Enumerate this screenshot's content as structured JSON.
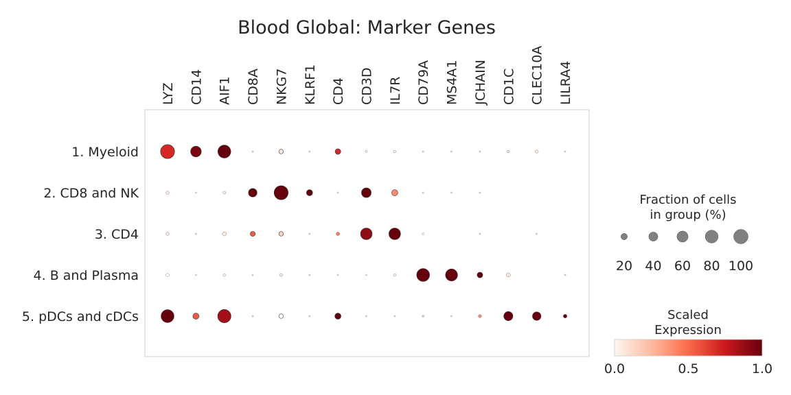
{
  "chart_data": {
    "type": "dotplot",
    "title": "Blood Global: Marker Genes",
    "genes": [
      "LYZ",
      "CD14",
      "AIF1",
      "CD8A",
      "NKG7",
      "KLRF1",
      "CD4",
      "CD3D",
      "IL7R",
      "CD79A",
      "MS4A1",
      "JCHAIN",
      "CD1C",
      "CLEC10A",
      "LILRA4"
    ],
    "groups": [
      "1. Myeloid",
      "2. CD8 and NK",
      "3. CD4",
      "4. B and Plasma",
      "5. pDCs and cDCs"
    ],
    "fraction_pct": [
      [
        95,
        55,
        80,
        1,
        10,
        1,
        15,
        2,
        3,
        1,
        1,
        1,
        3,
        5,
        1
      ],
      [
        5,
        1,
        4,
        35,
        95,
        18,
        1,
        45,
        18,
        1,
        1,
        1,
        0,
        0,
        0
      ],
      [
        5,
        1,
        8,
        12,
        10,
        1,
        6,
        65,
        65,
        2,
        0,
        1,
        0,
        1,
        0
      ],
      [
        5,
        1,
        3,
        1,
        4,
        1,
        1,
        1,
        3,
        80,
        70,
        15,
        8,
        0,
        1
      ],
      [
        80,
        18,
        85,
        1,
        10,
        1,
        18,
        1,
        1,
        2,
        1,
        5,
        40,
        35,
        7
      ]
    ],
    "scaled_expression": [
      [
        0.7,
        0.95,
        1.0,
        0.0,
        0.05,
        0.0,
        0.7,
        0.0,
        0.0,
        0.0,
        0.0,
        0.0,
        0.1,
        0.05,
        0.0
      ],
      [
        0.05,
        0.0,
        0.05,
        1.0,
        1.0,
        1.0,
        0.0,
        1.0,
        0.4,
        0.0,
        0.0,
        0.0,
        0.0,
        0.0,
        0.0
      ],
      [
        0.05,
        0.0,
        0.05,
        0.55,
        0.15,
        0.0,
        0.45,
        0.9,
        1.0,
        0.0,
        0.0,
        0.0,
        0.0,
        0.0,
        0.0
      ],
      [
        0.0,
        0.0,
        0.0,
        0.0,
        0.05,
        0.0,
        0.0,
        0.0,
        0.0,
        1.0,
        1.0,
        1.0,
        0.05,
        0.0,
        0.0
      ],
      [
        1.0,
        0.55,
        0.85,
        0.0,
        0.0,
        0.0,
        1.0,
        0.0,
        0.0,
        0.1,
        0.0,
        0.4,
        1.0,
        1.0,
        1.0
      ]
    ],
    "size_legend": {
      "title": "Fraction of cells\nin group (%)",
      "values": [
        20,
        40,
        60,
        80,
        100
      ],
      "labels": [
        "20",
        "40",
        "60",
        "80",
        "100"
      ]
    },
    "color_legend": {
      "title": "Scaled\nExpression",
      "range": [
        0.0,
        1.0
      ],
      "ticks": [
        "0.0",
        "0.5",
        "1.0"
      ],
      "colormap": "Reds",
      "colors": [
        "#fff5f0",
        "#fcbba1",
        "#fb6a4a",
        "#cb181d",
        "#67000d"
      ]
    },
    "dot_fill_zero": "#ffffff",
    "dot_edge": "#7f7f7f",
    "legend_dot_color": "#808080"
  }
}
